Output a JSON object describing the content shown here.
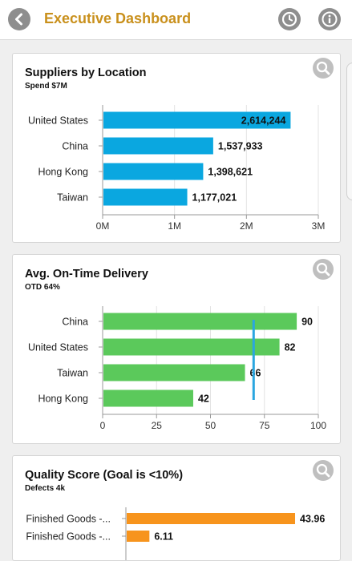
{
  "header": {
    "title": "Executive Dashboard",
    "back_icon": "chevron-left-icon",
    "history_icon": "clock-icon",
    "info_icon": "info-icon"
  },
  "colors": {
    "accent": "#c9901c",
    "blue_bar": "#0aa7e0",
    "green_bar": "#5bc95b",
    "orange_bar": "#f7941d",
    "target_line": "#2aa6e0"
  },
  "cards": [
    {
      "title": "Suppliers by Location",
      "subtitle": "Spend $7M",
      "chart_data": {
        "type": "bar",
        "orientation": "horizontal",
        "categories": [
          "United States",
          "China",
          "Hong Kong",
          "Taiwan"
        ],
        "values": [
          2614244,
          1537933,
          1398621,
          1177021
        ],
        "value_labels": [
          "2,614,244",
          "1,537,933",
          "1,398,621",
          "1,177,021"
        ],
        "xlim": [
          0,
          3000000
        ],
        "xticks": [
          0,
          1000000,
          2000000,
          3000000
        ],
        "xtick_labels": [
          "0M",
          "1M",
          "2M",
          "3M"
        ],
        "grid": true
      }
    },
    {
      "title": "Avg. On-Time Delivery",
      "subtitle": "OTD 64%",
      "chart_data": {
        "type": "bar",
        "orientation": "horizontal",
        "categories": [
          "China",
          "United States",
          "Taiwan",
          "Hong Kong"
        ],
        "values": [
          90,
          82,
          66,
          42
        ],
        "value_labels": [
          "90",
          "82",
          "66",
          "42"
        ],
        "xlim": [
          0,
          100
        ],
        "xticks": [
          0,
          25,
          50,
          75,
          100
        ],
        "xtick_labels": [
          "0",
          "25",
          "50",
          "75",
          "100"
        ],
        "target_value": 70,
        "grid": true
      }
    },
    {
      "title": "Quality Score (Goal is <10%)",
      "subtitle": "Defects 4k",
      "chart_data": {
        "type": "bar",
        "orientation": "horizontal",
        "categories": [
          "Finished Goods -...",
          "Finished Goods -..."
        ],
        "values": [
          43.96,
          6.11
        ],
        "value_labels": [
          "43.96",
          "6.11"
        ],
        "xlim": [
          0,
          50
        ],
        "grid": true
      }
    }
  ]
}
